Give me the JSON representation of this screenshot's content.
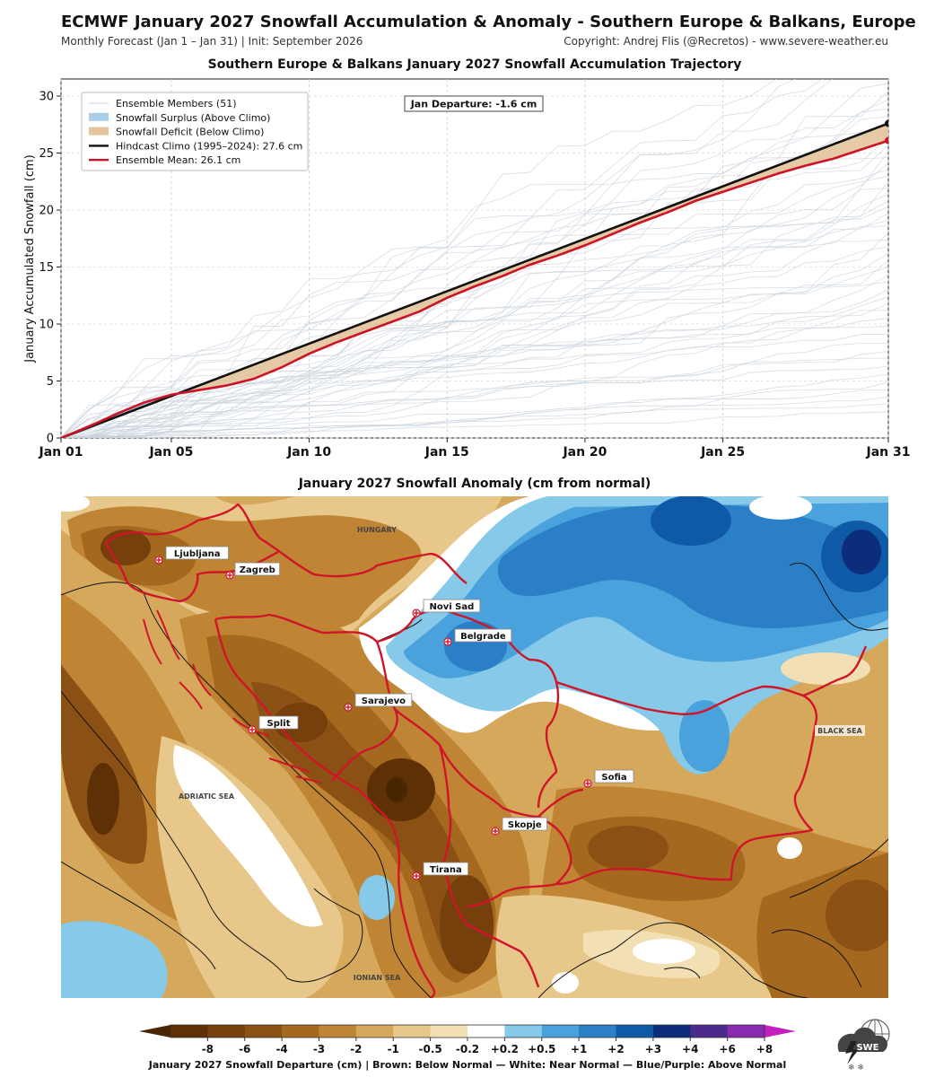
{
  "header": {
    "title": "ECMWF January 2027 Snowfall Accumulation & Anomaly - Southern Europe & Balkans, Europe",
    "subtitle_left": "Monthly Forecast (Jan 1 – Jan 31) | Init: September 2026",
    "subtitle_right": "Copyright: Andrej Flis (@Recretos) - www.severe-weather.eu"
  },
  "chart_data": [
    {
      "type": "line",
      "title": "Southern Europe & Balkans January 2027 Snowfall Accumulation Trajectory",
      "xlabel": "",
      "ylabel": "January Accumulated Snowfall (cm)",
      "xlim": [
        1,
        31
      ],
      "ylim": [
        0,
        31.5
      ],
      "x_ticks": [
        1,
        5,
        10,
        15,
        20,
        25,
        31
      ],
      "x_tick_labels": [
        "Jan 01",
        "Jan 05",
        "Jan 10",
        "Jan 15",
        "Jan 20",
        "Jan 25",
        "Jan 31"
      ],
      "y_ticks": [
        0,
        5,
        10,
        15,
        20,
        25,
        30
      ],
      "grid": true,
      "legend_position": "top-left",
      "annotation": "Jan Departure: -1.6 cm",
      "legend": [
        {
          "label": "Ensemble Members (51)",
          "kind": "line",
          "color": "#c9d3dc"
        },
        {
          "label": "Snowfall Surplus (Above Climo)",
          "kind": "patch",
          "color": "#a9cfe6"
        },
        {
          "label": "Snowfall Deficit (Below Climo)",
          "kind": "patch",
          "color": "#e3c49b"
        },
        {
          "label": "Hindcast Climo (1995–2024): 27.6 cm",
          "kind": "line",
          "color": "#111111"
        },
        {
          "label": "Ensemble Mean: 26.1 cm",
          "kind": "line",
          "color": "#cc1426"
        }
      ],
      "series": [
        {
          "name": "Hindcast Climo (1995–2024): 27.6 cm",
          "color": "#111111",
          "x": [
            1,
            31
          ],
          "values": [
            0,
            27.6
          ]
        },
        {
          "name": "Ensemble Mean: 26.1 cm",
          "color": "#cc1426",
          "x": [
            1,
            2,
            3,
            4,
            5,
            6,
            7,
            8,
            9,
            10,
            11,
            12,
            13,
            14,
            15,
            16,
            17,
            18,
            19,
            20,
            21,
            22,
            23,
            24,
            25,
            26,
            27,
            28,
            29,
            30,
            31
          ],
          "values": [
            0,
            1.0,
            2.1,
            3.1,
            3.8,
            4.2,
            4.6,
            5.2,
            6.2,
            7.4,
            8.4,
            9.3,
            10.2,
            11.1,
            12.3,
            13.3,
            14.2,
            15.2,
            16.0,
            16.9,
            17.9,
            18.9,
            19.8,
            20.8,
            21.6,
            22.4,
            23.2,
            23.9,
            24.5,
            25.3,
            26.1
          ]
        }
      ],
      "ensemble_final_values": [
        2.3,
        3.0,
        3.6,
        4.2,
        4.9,
        5.6,
        6.3,
        7.0,
        7.6,
        8.3,
        9.1,
        9.8,
        10.5,
        11.2,
        11.8,
        12.4,
        13.0,
        13.7,
        14.3,
        15.0,
        15.6,
        16.2,
        16.8,
        17.4,
        18.0,
        18.6,
        19.1,
        19.7,
        20.3,
        20.8,
        21.4,
        21.9,
        22.5,
        23.0,
        23.6,
        24.1,
        24.6,
        25.1,
        25.7,
        26.3,
        26.9,
        27.5,
        28.2,
        28.9,
        29.7,
        30.4,
        31.1,
        31.8,
        32.6,
        33.5,
        34.6
      ]
    },
    {
      "type": "heatmap",
      "title": "January 2027 Snowfall Anomaly (cm from normal)",
      "colorbar": {
        "boundaries": [
          "-8",
          "-6",
          "-4",
          "-3",
          "-2",
          "-1",
          "-0.5",
          "-0.2",
          "+0.2",
          "+0.5",
          "+1",
          "+2",
          "+3",
          "+4",
          "+6",
          "+8"
        ],
        "colors": [
          "#4a2502",
          "#5e3006",
          "#75400b",
          "#8b5114",
          "#a4681f",
          "#bf8535",
          "#d6a85c",
          "#e8c88a",
          "#f3dfb4",
          "#ffffff",
          "#86c9e8",
          "#4aa2dc",
          "#2a7fc6",
          "#0f5aa6",
          "#0b2d7c",
          "#4b2a8c",
          "#8a2ab0",
          "#c61fbf"
        ],
        "caption": "January 2027 Snowfall Departure (cm)  |  Brown: Below Normal  —  White: Near Normal  —  Blue/Purple: Above Normal"
      },
      "cities": [
        {
          "name": "Ljubljana"
        },
        {
          "name": "Zagreb"
        },
        {
          "name": "Novi Sad"
        },
        {
          "name": "Belgrade"
        },
        {
          "name": "Sarajevo"
        },
        {
          "name": "Split"
        },
        {
          "name": "Sofia"
        },
        {
          "name": "Skopje"
        },
        {
          "name": "Tirana"
        }
      ],
      "regions": [
        "HUNGARY",
        "ADRIATIC SEA",
        "BLACK SEA",
        "IONIAN SEA"
      ]
    }
  ],
  "logo": {
    "text": "SWE"
  }
}
